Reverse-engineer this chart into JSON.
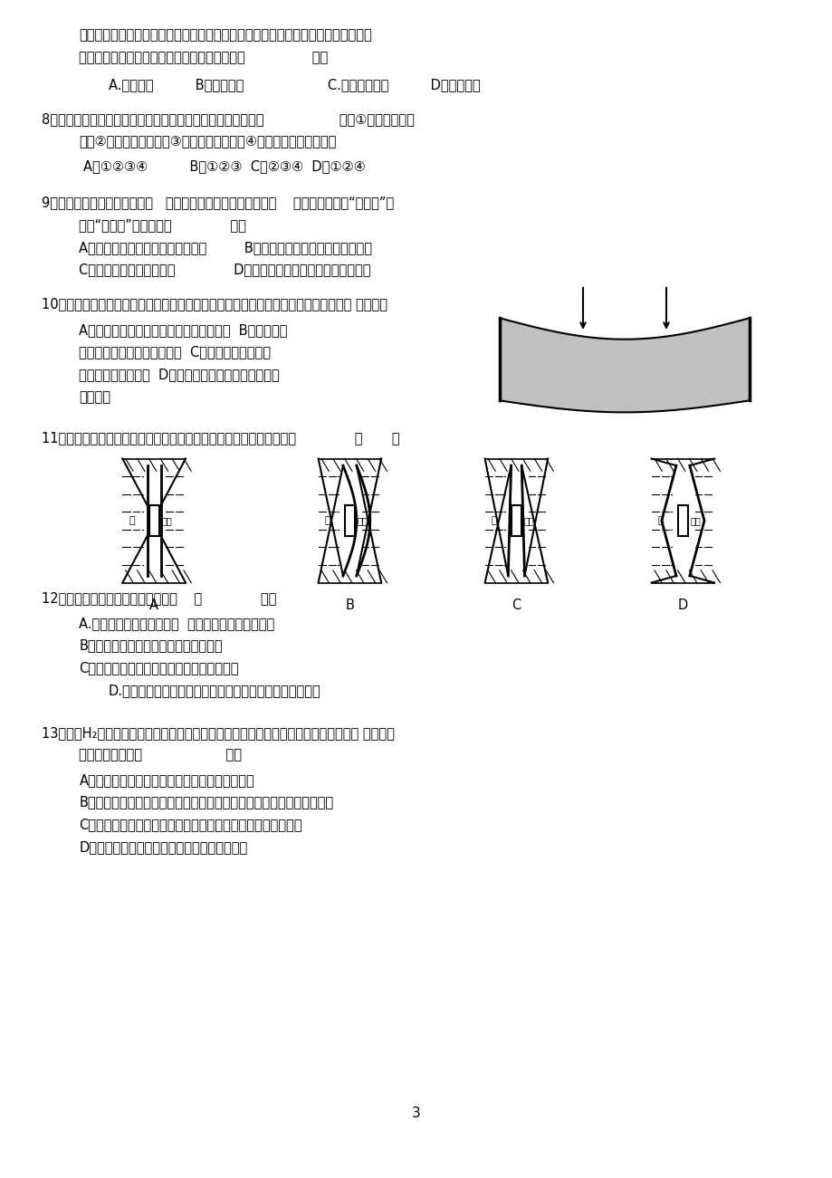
{
  "bg_color": "#ffffff",
  "page_width": 9.2,
  "page_height": 13.01,
  "q7_line1": "纸制作出来的，各个部件可以互换，战场上士兵可以从损坏的答机上拆下完好的部件",
  "q7_line2": "重新组装使用这说明诸葛弩的设计主要体现了（                ）。",
  "q7_opts": "A.创新原则          B．道德原则                    C.技术规范原则          D．美观原则",
  "q8_line1": "8．一个问题的解决或一个设计项目的进行，所受到的限制有（                  ）。①设计对象的特",
  "q8_line2": "点、②设计标准的高低、③设计者技术能力、④设计团随物力财力资源",
  "q8_opts": "A、①②③④          B、①②③  C、②③④  D、①②④",
  "q9_line1": "9．我们在设计制作的过程中，   为了降低制作成本和制作难度，    常希望使用一些“标准件”。",
  "q9_line2": "你对“标准件”的理解是（              ）。",
  "q9_optA": "A、国家给予统一标准代号的零部件         B、经国家检验合格或免检的零部件",
  "q9_optC": "C、全国统一价格的零部件              D、已经获得专利并得到保护的零部件",
  "q10_line1": "10．如图，水泥梁在受力后会发生形变，此时沿它的上、下表面沿表面方向的受力分别 是（）。",
  "q10_A": "A、梁的上表面受到压力，下表面受到压力  B、梁的上表",
  "q10_B": "面受到压力，下表面受到拉力  C、梁的上表面受到拉",
  "q10_C": "力，下表除受到压力  D、梁的上表面受到拉力，下表面",
  "q10_D": "受到拉力",
  "q11_line1": "11．图中所示的是某农村小型水库大坝的俧视图，设计比较合理的是：              （       ）",
  "q12_line1": "12．下列关于流程的描述，正确的是    （              ）。",
  "q12_A": "A.任何流程环节的先后顺序  （时序）都是可以调整的",
  "q12_B": "B．两个或两个以上的环节就能构成流程",
  "q12_C": "C．任何流程都能反映事物的合理的内在机理",
  "q12_D": "D.流程的表达通常用流程图，其中方框流程图是最常用的。",
  "q13_line1": "13．水（H₂。是由氢和氧两种元素构成，但当你口渴需要喝水时，分别吸入氢气和氧气 并不能为",
  "q13_line2": "你解渴，这说明（                    ）。",
  "q13_A": "A、至少要有两个或两个以上的要素才能构成系统",
  "q13_B": "B、各要素（部分）之间相互联系、相互作用，按照一定的方式形成整体",
  "q13_C": "C、系统整体所具有的功能是各个要素（部分）的功能中没有的",
  "q13_D": "D、系统包含子系统，它又是更大系统的子系统",
  "page_num": "3"
}
